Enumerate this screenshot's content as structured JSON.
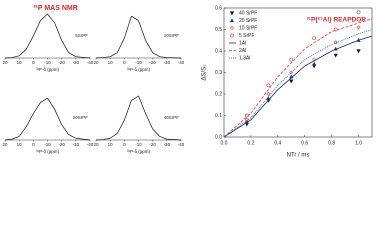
{
  "chart_data": [
    {
      "type": "line",
      "title": "³¹P MAS NMR",
      "title_color": "#d8262b",
      "label": "5SrPF",
      "xlabel": "³¹P-δ (ppm)",
      "xlim": [
        20,
        -40
      ],
      "xticks": [
        20,
        10,
        0,
        -10,
        -20,
        -30,
        -40
      ],
      "ylim": [
        0,
        1
      ],
      "x": [
        20,
        15,
        10,
        5,
        0,
        -5,
        -10,
        -15,
        -20,
        -25,
        -30,
        -40
      ],
      "series": [
        {
          "color": "#111111",
          "values": [
            0,
            0.01,
            0.05,
            0.2,
            0.5,
            0.85,
            1,
            0.8,
            0.4,
            0.12,
            0.03,
            0
          ]
        }
      ]
    },
    {
      "type": "line",
      "label": "10SrPF",
      "xlabel": "³¹P-δ (ppm)",
      "xlim": [
        20,
        -40
      ],
      "xticks": [
        20,
        10,
        0,
        -10,
        -20,
        -30,
        -40
      ],
      "ylim": [
        0,
        1
      ],
      "x": [
        20,
        15,
        10,
        5,
        0,
        -5,
        -10,
        -15,
        -20,
        -25,
        -30,
        -40
      ],
      "series": [
        {
          "color": "#111111",
          "values": [
            0,
            0.01,
            0.03,
            0.12,
            0.45,
            0.95,
            0.85,
            0.4,
            0.12,
            0.03,
            0.01,
            0
          ]
        }
      ]
    },
    {
      "type": "line",
      "label": "20SrPF",
      "xlabel": "³¹P-δ (ppm)",
      "xlim": [
        20,
        -40
      ],
      "xticks": [
        20,
        10,
        0,
        -10,
        -20,
        -30,
        -40
      ],
      "ylim": [
        0,
        1
      ],
      "x": [
        20,
        15,
        10,
        5,
        0,
        -5,
        -10,
        -15,
        -20,
        -25,
        -30,
        -40
      ],
      "series": [
        {
          "color": "#111111",
          "values": [
            0,
            0.02,
            0.08,
            0.3,
            0.6,
            0.85,
            0.95,
            0.7,
            0.35,
            0.12,
            0.04,
            0
          ]
        }
      ]
    },
    {
      "type": "line",
      "label": "40SrPF",
      "xlabel": "³¹P-δ (ppm)",
      "xlim": [
        20,
        -40
      ],
      "xticks": [
        20,
        10,
        0,
        -10,
        -20,
        -30,
        -40
      ],
      "ylim": [
        0,
        1
      ],
      "x": [
        20,
        15,
        10,
        5,
        0,
        -5,
        -10,
        -15,
        -20,
        -25,
        -30,
        -40
      ],
      "series": [
        {
          "color": "#111111",
          "values": [
            0,
            0.01,
            0.04,
            0.15,
            0.45,
            0.9,
            1,
            0.6,
            0.25,
            0.08,
            0.02,
            0
          ]
        }
      ]
    },
    {
      "type": "scatter",
      "title": "³¹P{²⁷Al} REAPDOR",
      "title_color": "#d8262b",
      "xlabel": "NTr / ms",
      "ylabel": "ΔS/S₀",
      "xlim": [
        0,
        1.1
      ],
      "ylim": [
        0,
        0.6
      ],
      "xticks": [
        {
          "value": 0,
          "label": "0.0"
        },
        {
          "value": 0.2,
          "label": "0.2"
        },
        {
          "value": 0.4,
          "label": "0.4"
        },
        {
          "value": 0.6,
          "label": "0.6"
        },
        {
          "value": 0.8,
          "label": "0.8"
        },
        {
          "value": 1,
          "label": "1.0"
        }
      ],
      "yticks": [
        {
          "value": 0,
          "label": "0.0"
        },
        0.1,
        0.2,
        0.3,
        0.4,
        0.5,
        0.6
      ],
      "series": [
        {
          "name": "40 SrPF",
          "color": "#111111",
          "marker": "triangle-down",
          "x": [
            0.17,
            0.33,
            0.5,
            0.67,
            0.83,
            1.0
          ],
          "values": [
            0.06,
            0.17,
            0.26,
            0.33,
            0.38,
            0.4
          ]
        },
        {
          "name": "20 SrPF",
          "color": "#1f3f9a",
          "marker": "triangle-up",
          "x": [
            0.17,
            0.33,
            0.5,
            0.67,
            0.83,
            1.0
          ],
          "values": [
            0.07,
            0.18,
            0.28,
            0.34,
            0.41,
            0.45
          ]
        },
        {
          "name": "10 SrPF",
          "color": "#e03a3a",
          "marker": "diamond",
          "x": [
            0.17,
            0.33,
            0.5,
            0.67,
            0.83,
            1.0
          ],
          "values": [
            0.08,
            0.2,
            0.3,
            0.36,
            0.44,
            0.51
          ]
        },
        {
          "name": "5 SrPF",
          "color": "#e03a3a",
          "marker": "circle",
          "x": [
            0.17,
            0.33,
            0.5,
            0.67,
            0.83,
            1.0
          ],
          "values": [
            0.1,
            0.24,
            0.36,
            0.46,
            0.5,
            0.58
          ]
        },
        {
          "name": "1Al",
          "color": "#1a2a5a",
          "dash": "solid",
          "x": [
            0,
            0.2,
            0.4,
            0.6,
            0.8,
            1.0,
            1.1
          ],
          "values": [
            0,
            0.08,
            0.22,
            0.33,
            0.4,
            0.45,
            0.47
          ]
        },
        {
          "name": "2Al",
          "color": "#e03a3a",
          "dash": "dashed",
          "x": [
            0,
            0.2,
            0.4,
            0.6,
            0.8,
            1.0,
            1.1
          ],
          "values": [
            0,
            0.11,
            0.28,
            0.41,
            0.49,
            0.53,
            0.55
          ]
        },
        {
          "name": "1.3Al",
          "color": "#2a5cc8",
          "dash": "dotted",
          "x": [
            0,
            0.2,
            0.4,
            0.6,
            0.8,
            1.0,
            1.1
          ],
          "values": [
            0,
            0.09,
            0.24,
            0.36,
            0.43,
            0.48,
            0.5
          ]
        }
      ]
    }
  ]
}
